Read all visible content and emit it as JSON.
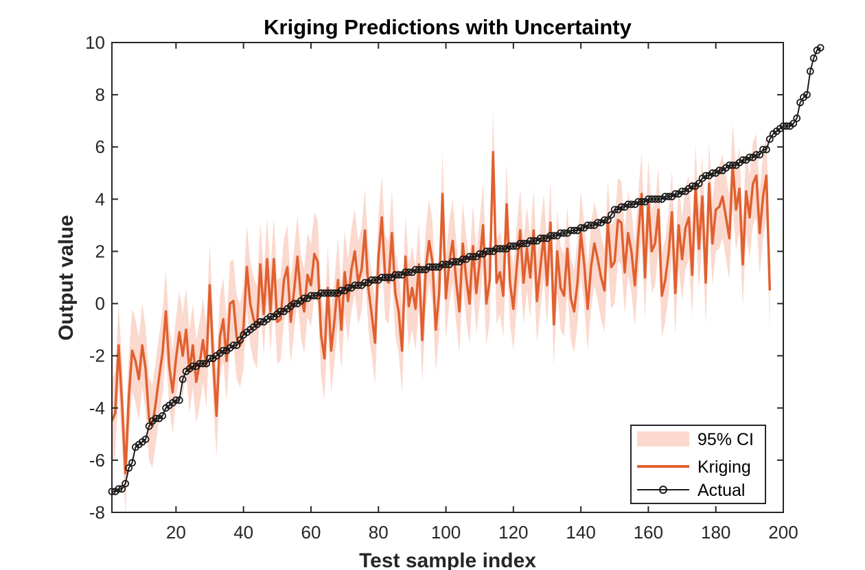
{
  "chart_data": {
    "type": "line",
    "title": "Kriging Predictions with Uncertainty",
    "xlabel": "Test sample index",
    "ylabel": "Output value",
    "xlim": [
      1,
      200
    ],
    "ylim": [
      -8,
      10
    ],
    "xticks": [
      20,
      40,
      60,
      80,
      100,
      120,
      140,
      160,
      180,
      200
    ],
    "yticks": [
      -8,
      -6,
      -4,
      -2,
      0,
      2,
      4,
      6,
      8,
      10
    ],
    "grid": false,
    "legend_position": "bottom-right",
    "legend": [
      "95% CI",
      "Kriging",
      "Actual"
    ],
    "series": [
      {
        "name": "95% CI",
        "kind": "band",
        "color": "#fbd9cf",
        "half_width": 1.6
      },
      {
        "name": "Kriging",
        "kind": "line",
        "color": "#e0602f",
        "values": [
          -4.5,
          -4.2,
          -1.6,
          -3.8,
          -6.5,
          -3.6,
          -1.8,
          -2.2,
          -2.9,
          -1.6,
          -2.5,
          -4.4,
          -4.7,
          -3.8,
          -2.8,
          -1.9,
          -0.3,
          -2.4,
          -3.4,
          -2.1,
          -1.1,
          -2.0,
          -1.0,
          -2.6,
          -1.6,
          -3.0,
          -2.3,
          -1.4,
          -2.4,
          0.7,
          -2.1,
          -4.3,
          -1.3,
          -0.6,
          -2.2,
          0.0,
          0.1,
          -1.3,
          -1.6,
          -0.9,
          1.4,
          0.0,
          -0.6,
          -0.9,
          1.5,
          -0.4,
          1.7,
          -0.3,
          1.7,
          -0.7,
          -0.6,
          0.9,
          1.4,
          -0.7,
          0.5,
          1.8,
          0.3,
          -0.3,
          1.1,
          0.7,
          1.9,
          1.6,
          -1.2,
          -2.1,
          0.6,
          -1.8,
          -0.6,
          0.9,
          -1.0,
          1.2,
          0.1,
          1.3,
          2.0,
          0.8,
          1.3,
          2.8,
          0.6,
          -0.4,
          -1.5,
          1.8,
          3.3,
          1.0,
          0.8,
          2.7,
          0.4,
          -0.3,
          -1.8,
          1.8,
          -0.1,
          0.6,
          -0.2,
          1.5,
          -1.4,
          1.3,
          2.4,
          1.6,
          -1.0,
          0.4,
          4.2,
          0.2,
          1.6,
          2.4,
          0.9,
          -0.3,
          2.3,
          1.0,
          0.0,
          2.2,
          0.4,
          1.6,
          3.0,
          0.0,
          0.9,
          5.8,
          0.8,
          1.2,
          0.3,
          3.8,
          0.8,
          -0.2,
          1.4,
          2.8,
          0.8,
          2.1,
          1.0,
          2.8,
          0.1,
          1.4,
          2.6,
          0.7,
          3.1,
          -0.8,
          2.0,
          0.6,
          0.3,
          2.1,
          0.2,
          -0.3,
          0.8,
          2.7,
          1.5,
          -0.2,
          1.4,
          2.3,
          1.7,
          1.0,
          0.5,
          3.1,
          1.4,
          1.6,
          3.2,
          3.1,
          1.2,
          2.7,
          2.0,
          0.7,
          2.6,
          4.2,
          1.0,
          3.9,
          2.0,
          2.3,
          3.6,
          0.3,
          0.9,
          1.9,
          3.5,
          0.4,
          3.0,
          1.7,
          2.9,
          3.3,
          1.1,
          4.5,
          2.1,
          4.1,
          0.8,
          4.6,
          2.3,
          3.6,
          3.7,
          4.1,
          3.3,
          2.5,
          5.3,
          3.6,
          4.4,
          1.5,
          4.3,
          3.3,
          4.6,
          4.9,
          2.7,
          4.1,
          4.9,
          0.5
        ]
      },
      {
        "name": "Actual",
        "kind": "line-marker",
        "color": "#1a1a1a",
        "values": [
          -7.2,
          -7.2,
          -7.1,
          -7.1,
          -6.9,
          -6.3,
          -6.1,
          -5.5,
          -5.4,
          -5.3,
          -5.2,
          -4.7,
          -4.5,
          -4.4,
          -4.4,
          -4.3,
          -4.0,
          -3.9,
          -3.8,
          -3.7,
          -3.7,
          -2.9,
          -2.6,
          -2.5,
          -2.4,
          -2.4,
          -2.3,
          -2.3,
          -2.3,
          -2.1,
          -2.1,
          -2.0,
          -1.9,
          -1.8,
          -1.8,
          -1.7,
          -1.6,
          -1.6,
          -1.4,
          -1.2,
          -1.1,
          -1.0,
          -0.9,
          -0.8,
          -0.7,
          -0.7,
          -0.6,
          -0.5,
          -0.5,
          -0.4,
          -0.3,
          -0.3,
          -0.2,
          -0.1,
          0.0,
          0.0,
          0.1,
          0.2,
          0.2,
          0.3,
          0.3,
          0.3,
          0.4,
          0.4,
          0.4,
          0.4,
          0.4,
          0.4,
          0.5,
          0.5,
          0.6,
          0.6,
          0.7,
          0.7,
          0.7,
          0.8,
          0.8,
          0.9,
          0.9,
          0.9,
          1.0,
          1.0,
          1.0,
          1.0,
          1.1,
          1.1,
          1.1,
          1.2,
          1.2,
          1.2,
          1.3,
          1.3,
          1.3,
          1.3,
          1.4,
          1.4,
          1.4,
          1.4,
          1.5,
          1.5,
          1.5,
          1.6,
          1.6,
          1.6,
          1.7,
          1.7,
          1.8,
          1.8,
          1.8,
          1.9,
          1.9,
          2.0,
          2.0,
          2.0,
          2.1,
          2.1,
          2.1,
          2.1,
          2.2,
          2.2,
          2.2,
          2.3,
          2.3,
          2.3,
          2.4,
          2.4,
          2.4,
          2.5,
          2.5,
          2.5,
          2.6,
          2.6,
          2.6,
          2.7,
          2.7,
          2.7,
          2.8,
          2.8,
          2.8,
          2.9,
          2.9,
          3.0,
          3.0,
          3.0,
          3.1,
          3.1,
          3.2,
          3.2,
          3.4,
          3.6,
          3.6,
          3.7,
          3.7,
          3.8,
          3.8,
          3.8,
          3.9,
          3.9,
          3.9,
          4.0,
          4.0,
          4.0,
          4.0,
          4.0,
          4.1,
          4.1,
          4.1,
          4.2,
          4.2,
          4.3,
          4.3,
          4.4,
          4.5,
          4.5,
          4.6,
          4.8,
          4.9,
          4.9,
          5.0,
          5.0,
          5.1,
          5.1,
          5.2,
          5.3,
          5.3,
          5.3,
          5.4,
          5.5,
          5.5,
          5.6,
          5.6,
          5.7,
          5.7,
          5.9,
          5.9,
          6.3,
          6.5,
          6.6,
          6.7,
          6.8,
          6.8,
          6.8,
          6.9,
          7.1,
          7.7,
          7.9,
          8.0,
          8.9,
          9.4,
          9.7,
          9.8
        ]
      }
    ]
  }
}
